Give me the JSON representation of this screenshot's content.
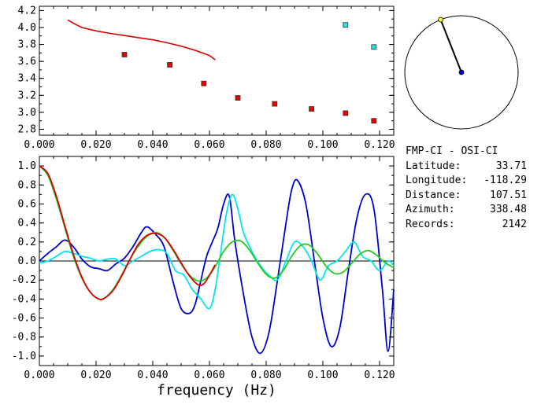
{
  "info": {
    "title": "FMP-CI - OSI-CI",
    "rows": [
      {
        "label": "Latitude:",
        "value": "33.71"
      },
      {
        "label": "Longitude:",
        "value": "-118.29"
      },
      {
        "label": "Distance:",
        "value": "107.51"
      },
      {
        "label": "Azimuth:",
        "value": "338.48"
      },
      {
        "label": "Records:",
        "value": "2142"
      }
    ]
  },
  "azimuth_deg": 338.48,
  "colors": {
    "red": "#dd0000",
    "blue": "#0000cc",
    "cyan": "#00e5ee",
    "green": "#22cc22",
    "marker_red": "#ee0000",
    "marker_cyan": "#33dddd",
    "dot_yellow": "#ffff00"
  },
  "chart_data": [
    {
      "type": "scatter",
      "xlim": [
        0.0,
        0.125
      ],
      "ylim": [
        2.73,
        4.25
      ],
      "xticks": [
        "0.000",
        "0.020",
        "0.040",
        "0.060",
        "0.080",
        "0.100",
        "0.120"
      ],
      "yticks": [
        "2.8",
        "3.0",
        "3.2",
        "3.4",
        "3.6",
        "3.8",
        "4.0",
        "4.2"
      ],
      "line": {
        "color": "red",
        "x": [
          0.01,
          0.012,
          0.015,
          0.02,
          0.025,
          0.03,
          0.035,
          0.04,
          0.045,
          0.05,
          0.055,
          0.06,
          0.062
        ],
        "y": [
          4.09,
          4.05,
          4.0,
          3.96,
          3.93,
          3.905,
          3.88,
          3.855,
          3.82,
          3.78,
          3.73,
          3.67,
          3.62
        ]
      },
      "series": [
        {
          "color": "marker_red",
          "x": [
            0.03,
            0.046,
            0.058,
            0.07,
            0.083,
            0.096,
            0.108,
            0.118
          ],
          "y": [
            3.68,
            3.56,
            3.34,
            3.17,
            3.1,
            3.04,
            2.99,
            2.9
          ]
        },
        {
          "color": "marker_cyan",
          "x": [
            0.108,
            0.118
          ],
          "y": [
            4.03,
            3.77
          ]
        }
      ]
    },
    {
      "type": "line",
      "xlim": [
        0.0,
        0.125
      ],
      "ylim": [
        -1.1,
        1.1
      ],
      "xlabel": "frequency (Hz)",
      "xticks": [
        "0.000",
        "0.020",
        "0.040",
        "0.060",
        "0.080",
        "0.100",
        "0.120"
      ],
      "yticks": [
        "1.0",
        "0.8",
        "0.6",
        "0.4",
        "0.2",
        "0.0",
        "-0.2",
        "-0.4",
        "-0.6",
        "-0.8",
        "-1.0"
      ],
      "zero_line": true,
      "series": [
        {
          "color": "blue",
          "x": [
            0.0,
            0.003,
            0.006,
            0.009,
            0.012,
            0.015,
            0.018,
            0.021,
            0.024,
            0.027,
            0.03,
            0.033,
            0.036,
            0.038,
            0.041,
            0.044,
            0.047,
            0.05,
            0.053,
            0.055,
            0.057,
            0.059,
            0.061,
            0.063,
            0.065,
            0.067,
            0.069,
            0.072,
            0.075,
            0.078,
            0.081,
            0.084,
            0.087,
            0.089,
            0.091,
            0.094,
            0.097,
            0.1,
            0.103,
            0.106,
            0.109,
            0.112,
            0.115,
            0.118,
            0.121,
            0.123,
            0.125
          ],
          "y": [
            0.0,
            0.08,
            0.15,
            0.22,
            0.15,
            0.02,
            -0.06,
            -0.08,
            -0.1,
            -0.03,
            0.03,
            0.15,
            0.3,
            0.36,
            0.28,
            0.15,
            -0.2,
            -0.5,
            -0.55,
            -0.45,
            -0.2,
            0.05,
            0.2,
            0.35,
            0.6,
            0.68,
            0.2,
            -0.35,
            -0.8,
            -0.97,
            -0.75,
            -0.2,
            0.4,
            0.75,
            0.85,
            0.6,
            0.0,
            -0.6,
            -0.9,
            -0.7,
            -0.1,
            0.45,
            0.7,
            0.55,
            -0.3,
            -0.95,
            -0.3
          ]
        },
        {
          "color": "cyan",
          "x": [
            0.0,
            0.003,
            0.006,
            0.009,
            0.012,
            0.015,
            0.018,
            0.021,
            0.024,
            0.027,
            0.03,
            0.033,
            0.036,
            0.039,
            0.042,
            0.045,
            0.048,
            0.051,
            0.054,
            0.057,
            0.06,
            0.062,
            0.064,
            0.066,
            0.068,
            0.07,
            0.072,
            0.075,
            0.078,
            0.081,
            0.084,
            0.087,
            0.09,
            0.093,
            0.096,
            0.099,
            0.102,
            0.105,
            0.108,
            0.111,
            0.114,
            0.117,
            0.12,
            0.123,
            0.125
          ],
          "y": [
            -0.02,
            0.0,
            0.05,
            0.1,
            0.08,
            0.05,
            0.03,
            0.0,
            0.02,
            0.02,
            -0.05,
            0.0,
            0.05,
            0.1,
            0.12,
            0.08,
            -0.1,
            -0.15,
            -0.3,
            -0.4,
            -0.5,
            -0.3,
            0.1,
            0.5,
            0.7,
            0.55,
            0.3,
            0.1,
            -0.05,
            -0.15,
            -0.2,
            0.0,
            0.2,
            0.15,
            0.0,
            -0.2,
            -0.05,
            0.0,
            0.1,
            0.2,
            0.05,
            0.0,
            -0.1,
            0.0,
            -0.05
          ]
        },
        {
          "color": "green",
          "x": [
            0.0,
            0.003,
            0.006,
            0.009,
            0.012,
            0.015,
            0.018,
            0.021,
            0.023,
            0.026,
            0.029,
            0.032,
            0.035,
            0.038,
            0.041,
            0.044,
            0.047,
            0.05,
            0.053,
            0.056,
            0.059,
            0.062,
            0.065,
            0.068,
            0.071,
            0.074,
            0.077,
            0.08,
            0.083,
            0.086,
            0.089,
            0.092,
            0.095,
            0.098,
            0.101,
            0.104,
            0.107,
            0.11,
            0.113,
            0.116,
            0.119,
            0.122,
            0.125
          ],
          "y": [
            1.0,
            0.9,
            0.65,
            0.35,
            0.05,
            -0.18,
            -0.33,
            -0.4,
            -0.39,
            -0.3,
            -0.15,
            0.02,
            0.16,
            0.26,
            0.3,
            0.25,
            0.12,
            -0.03,
            -0.15,
            -0.21,
            -0.18,
            -0.06,
            0.1,
            0.2,
            0.21,
            0.12,
            -0.02,
            -0.14,
            -0.18,
            -0.1,
            0.05,
            0.16,
            0.17,
            0.08,
            -0.05,
            -0.13,
            -0.12,
            -0.03,
            0.07,
            0.11,
            0.06,
            -0.02,
            -0.07
          ]
        },
        {
          "color": "red",
          "x": [
            0.0,
            0.003,
            0.006,
            0.009,
            0.012,
            0.015,
            0.018,
            0.021,
            0.023,
            0.026,
            0.029,
            0.032,
            0.035,
            0.038,
            0.041,
            0.044,
            0.047,
            0.05,
            0.053,
            0.056,
            0.058,
            0.06,
            0.062
          ],
          "y": [
            1.0,
            0.92,
            0.68,
            0.37,
            0.07,
            -0.17,
            -0.33,
            -0.4,
            -0.39,
            -0.31,
            -0.16,
            0.02,
            0.18,
            0.27,
            0.29,
            0.25,
            0.13,
            -0.02,
            -0.16,
            -0.25,
            -0.24,
            -0.15,
            -0.04
          ]
        }
      ]
    }
  ]
}
